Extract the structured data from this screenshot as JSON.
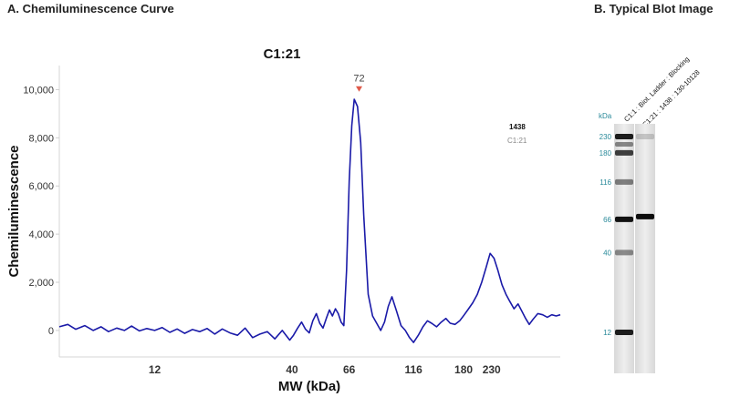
{
  "panel_a_title": "A. Chemiluminescence Curve",
  "panel_b_title": "B.  Typical Blot Image",
  "chart_data": {
    "type": "line",
    "title": "C1:21",
    "xlabel": "MW (kDa)",
    "ylabel": "Chemiluminescence",
    "x_scale": "log",
    "xlim": [
      5.2,
      420
    ],
    "ylim": [
      -1100,
      11000
    ],
    "x_ticks": [
      {
        "value": 12,
        "label": "12"
      },
      {
        "value": 40,
        "label": "40"
      },
      {
        "value": 66,
        "label": "66"
      },
      {
        "value": 116,
        "label": "116"
      },
      {
        "value": 180,
        "label": "180"
      },
      {
        "value": 230,
        "label": "230"
      }
    ],
    "y_ticks": [
      {
        "value": 0,
        "label": "0"
      },
      {
        "value": 2000,
        "label": "2,000"
      },
      {
        "value": 4000,
        "label": "4,000"
      },
      {
        "value": 6000,
        "label": "6,000"
      },
      {
        "value": 8000,
        "label": "8,000"
      },
      {
        "value": 10000,
        "label": "10,000"
      }
    ],
    "series": [
      {
        "color": "#1a1aa8",
        "x": [
          5.2,
          5.6,
          6.0,
          6.5,
          7.0,
          7.5,
          8.0,
          8.6,
          9.2,
          9.8,
          10.5,
          11.2,
          12.0,
          12.8,
          13.7,
          14.6,
          15.6,
          16.7,
          17.8,
          19.0,
          20.3,
          21.7,
          23.2,
          24.8,
          26.5,
          28.3,
          30.2,
          32.2,
          34.4,
          36.7,
          39.2,
          40.5,
          42.0,
          43.5,
          45.0,
          46.5,
          48.0,
          49.5,
          51.0,
          52.5,
          54.0,
          55.5,
          57.0,
          58.5,
          60.0,
          61.5,
          63.0,
          64.5,
          66.0,
          67.5,
          69.0,
          71.0,
          73.0,
          75.0,
          78.0,
          81.0,
          84.0,
          87.0,
          90.0,
          93.0,
          96.0,
          100.0,
          104.0,
          108.0,
          112.0,
          116.0,
          121.0,
          126.0,
          131.0,
          136.0,
          142.0,
          148.0,
          154.0,
          160.0,
          167.0,
          174.0,
          181.0,
          188.0,
          195.0,
          203.0,
          211.0,
          219.0,
          227.0,
          235.0,
          243.0,
          252.0,
          261.0,
          270.0,
          280.0,
          290.0,
          300.0,
          310.0,
          320.0,
          330.0,
          345.0,
          360.0,
          375.0,
          390.0,
          405.0,
          420.0
        ],
        "y": [
          150,
          250,
          50,
          200,
          0,
          150,
          -50,
          100,
          0,
          180,
          -20,
          80,
          0,
          120,
          -80,
          60,
          -120,
          40,
          -50,
          80,
          -150,
          60,
          -100,
          -200,
          100,
          -300,
          -150,
          -50,
          -350,
          0,
          -400,
          -200,
          100,
          350,
          50,
          -100,
          400,
          700,
          300,
          100,
          500,
          850,
          600,
          900,
          700,
          350,
          200,
          2500,
          6200,
          8500,
          9600,
          9300,
          7800,
          4800,
          1500,
          600,
          300,
          0,
          350,
          1000,
          1400,
          800,
          200,
          0,
          -300,
          -500,
          -200,
          150,
          400,
          300,
          150,
          350,
          500,
          300,
          250,
          400,
          650,
          900,
          1150,
          1500,
          2000,
          2600,
          3200,
          3000,
          2500,
          1900,
          1500,
          1200,
          900,
          1100,
          800,
          500,
          250,
          450,
          700,
          650,
          550,
          650,
          600,
          650
        ]
      }
    ],
    "peak": {
      "x": 72,
      "y": 9800,
      "label": "72"
    },
    "legend": [
      "1438",
      "C1:21"
    ],
    "legend_position": "top-right",
    "grid": false
  },
  "blot": {
    "kda_label": "kDa",
    "lane_labels": [
      "C1:1 : Biot. Ladder : Blocking",
      "C1:21 : 1438 : 130-10128"
    ],
    "markers": [
      {
        "value": 230,
        "label": "230"
      },
      {
        "value": 180,
        "label": "180"
      },
      {
        "value": 116,
        "label": "116"
      },
      {
        "value": 66,
        "label": "66"
      },
      {
        "value": 40,
        "label": "40"
      },
      {
        "value": 12,
        "label": "12"
      }
    ],
    "sample_band": {
      "value": 66
    }
  }
}
